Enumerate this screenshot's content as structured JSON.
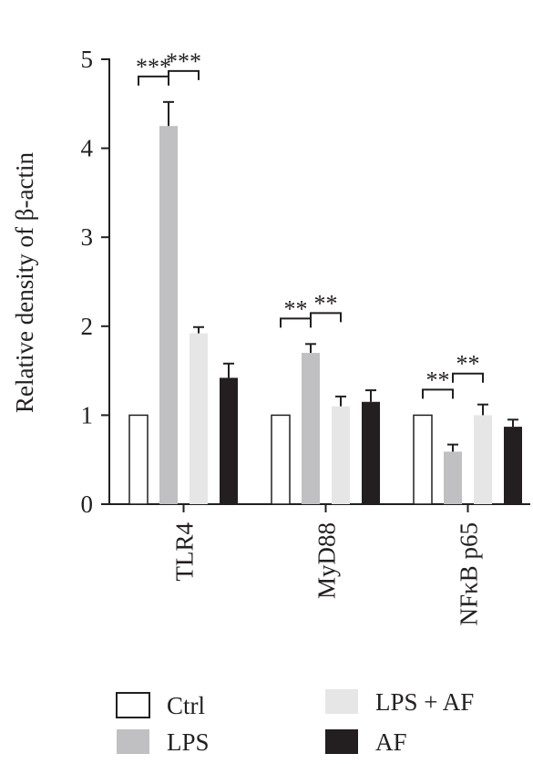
{
  "chart_data": {
    "type": "bar",
    "ylabel": "Relative density of β-actin",
    "ylim": [
      0,
      5
    ],
    "yticks": [
      0,
      1,
      2,
      3,
      4,
      5
    ],
    "categories": [
      "TLR4",
      "MyD88",
      "NFκB p65"
    ],
    "series": [
      {
        "name": "Ctrl",
        "color": "#ffffff",
        "values": [
          1.0,
          1.0,
          1.0
        ],
        "errors": [
          0,
          0,
          0
        ]
      },
      {
        "name": "LPS",
        "color": "#c0c0c2",
        "values": [
          4.25,
          1.7,
          0.59
        ],
        "errors": [
          0.27,
          0.1,
          0.08
        ]
      },
      {
        "name": "LPS + AF",
        "color": "#e6e6e7",
        "values": [
          1.92,
          1.1,
          1.0
        ],
        "errors": [
          0.07,
          0.11,
          0.12
        ]
      },
      {
        "name": "AF",
        "color": "#231f20",
        "values": [
          1.42,
          1.15,
          0.87
        ],
        "errors": [
          0.16,
          0.13,
          0.08
        ]
      }
    ],
    "significance": [
      {
        "category": 0,
        "from": 0,
        "to": 1,
        "label": "***"
      },
      {
        "category": 0,
        "from": 1,
        "to": 2,
        "label": "***"
      },
      {
        "category": 1,
        "from": 0,
        "to": 1,
        "label": "**"
      },
      {
        "category": 1,
        "from": 1,
        "to": 2,
        "label": "**"
      },
      {
        "category": 2,
        "from": 0,
        "to": 1,
        "label": "**"
      },
      {
        "category": 2,
        "from": 1,
        "to": 2,
        "label": "**"
      }
    ],
    "legend": {
      "placement": "bottom",
      "items": [
        {
          "label": "Ctrl",
          "color": "#ffffff"
        },
        {
          "label": "LPS + AF",
          "color": "#e6e6e7"
        },
        {
          "label": "LPS",
          "color": "#c0c0c2"
        },
        {
          "label": "AF",
          "color": "#231f20"
        }
      ]
    }
  }
}
